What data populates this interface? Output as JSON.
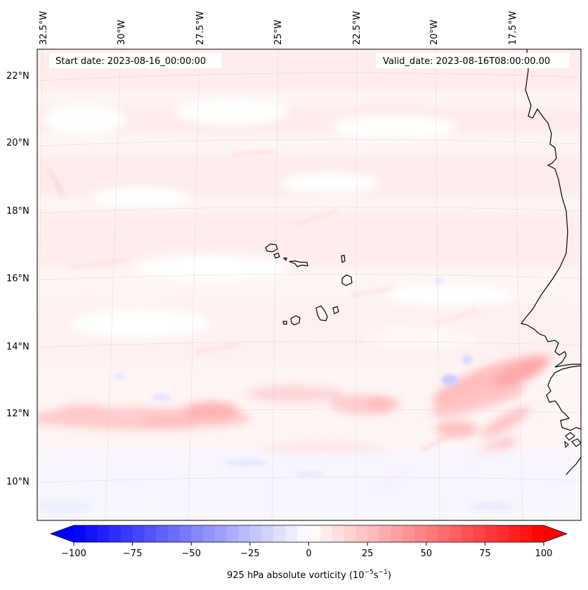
{
  "map": {
    "start_date": "Start date: 2023-08-16_00:00:00",
    "valid_date": "Valid_date: 2023-08-16T08:00:00.00",
    "lon_labels": [
      "32.5°W",
      "30°W",
      "27.5°W",
      "25°W",
      "22.5°W",
      "20°W",
      "17.5°W"
    ],
    "lat_labels": [
      "22°N",
      "20°N",
      "18°N",
      "16°N",
      "14°N",
      "12°N",
      "10°N"
    ]
  },
  "colorbar": {
    "title_main": "925 hPa absolute vorticity (10",
    "title_exp1": "−5",
    "title_mid": "s",
    "title_exp2": "−1",
    "title_close": ")",
    "ticks": [
      "−100",
      "−75",
      "−50",
      "−25",
      "0",
      "25",
      "50",
      "75",
      "100"
    ],
    "tick_values": [
      -100,
      -75,
      -50,
      -25,
      0,
      25,
      50,
      75,
      100
    ],
    "min": -100,
    "max": 100,
    "levels": 40,
    "cmap": [
      "#0000ff",
      "#ffffff",
      "#ff0000"
    ]
  },
  "colors": {
    "background_field": "#fff5f5",
    "coastline": "#000000",
    "gridline": "#c8c8c8"
  }
}
